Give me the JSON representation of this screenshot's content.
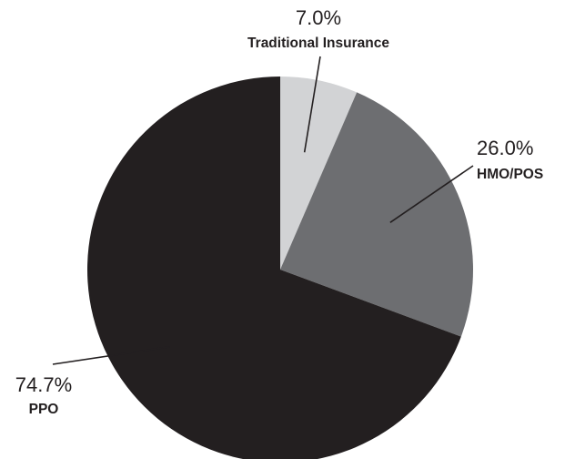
{
  "chart_data": {
    "type": "pie",
    "title": "",
    "slices": [
      {
        "label": "Traditional Insurance",
        "value": 7.0,
        "value_label": "7.0%",
        "color": "#d2d3d5"
      },
      {
        "label": "HMO/POS",
        "value": 26.0,
        "value_label": "26.0%",
        "color": "#6d6e71"
      },
      {
        "label": "PPO",
        "value": 74.7,
        "value_label": "74.7%",
        "color": "#231f20"
      }
    ],
    "start_angle": "12 o'clock",
    "direction": "clockwise",
    "label_style": "outside labels with leader lines, no legend"
  }
}
